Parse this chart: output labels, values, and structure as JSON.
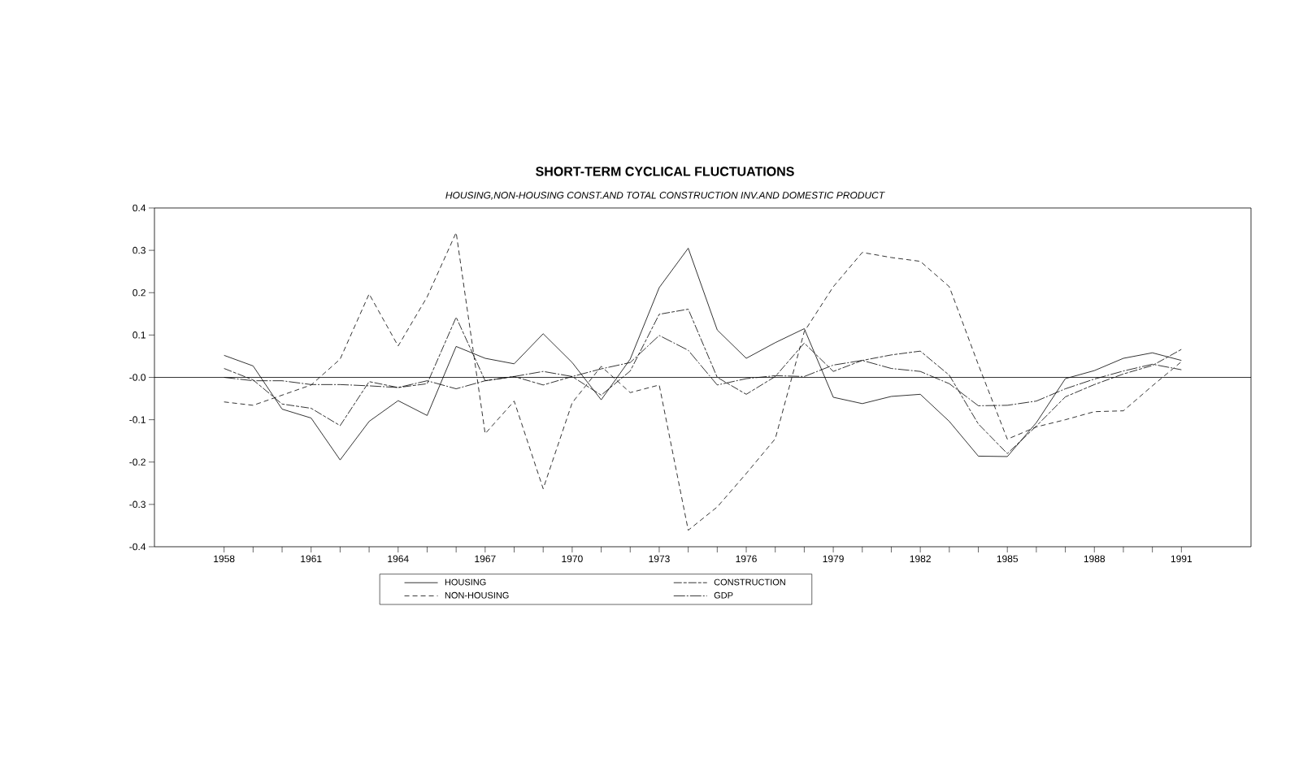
{
  "chart_data": {
    "type": "line",
    "title": "SHORT-TERM CYCLICAL FLUCTUATIONS",
    "subtitle": "HOUSING,NON-HOUSING CONST.AND TOTAL CONSTRUCTION INV.AND DOMESTIC PRODUCT",
    "x": [
      1958,
      1959,
      1960,
      1961,
      1962,
      1963,
      1964,
      1965,
      1966,
      1967,
      1968,
      1969,
      1970,
      1971,
      1972,
      1973,
      1974,
      1975,
      1976,
      1977,
      1978,
      1979,
      1980,
      1981,
      1982,
      1983,
      1984,
      1985,
      1986,
      1987,
      1988,
      1989,
      1990,
      1991
    ],
    "series": [
      {
        "name": "HOUSING",
        "color": "#000000",
        "line_style": "solid",
        "values": [
          0.052,
          0.027,
          -0.075,
          -0.096,
          -0.195,
          -0.104,
          -0.055,
          -0.09,
          0.073,
          0.045,
          0.032,
          0.103,
          0.035,
          -0.053,
          0.043,
          0.212,
          0.305,
          0.112,
          0.045,
          0.082,
          0.115,
          -0.047,
          -0.062,
          -0.045,
          -0.04,
          -0.104,
          -0.186,
          -0.187,
          -0.107,
          -0.003,
          0.016,
          0.045,
          0.058,
          0.04
        ]
      },
      {
        "name": "NON-HOUSING",
        "color": "#000000",
        "line_style": "dashed",
        "values": [
          -0.058,
          -0.066,
          -0.042,
          -0.018,
          0.043,
          0.197,
          0.074,
          0.19,
          0.342,
          -0.133,
          -0.056,
          -0.263,
          -0.06,
          0.026,
          -0.036,
          -0.018,
          -0.361,
          -0.306,
          -0.227,
          -0.145,
          0.108,
          0.214,
          0.295,
          0.283,
          0.274,
          0.214,
          0.03,
          -0.146,
          -0.117,
          -0.1,
          -0.081,
          -0.079,
          -0.02,
          0.037
        ]
      },
      {
        "name": "CONSTRUCTION",
        "color": "#000000",
        "line_style": "dashed",
        "values": [
          0.021,
          -0.006,
          -0.063,
          -0.073,
          -0.114,
          -0.01,
          -0.024,
          -0.015,
          0.142,
          -0.008,
          0.002,
          -0.018,
          0.002,
          -0.042,
          0.015,
          0.149,
          0.161,
          0.0,
          -0.04,
          0.002,
          0.081,
          0.014,
          0.04,
          0.053,
          0.062,
          0.005,
          -0.11,
          -0.18,
          -0.115,
          -0.046,
          -0.017,
          0.008,
          0.028,
          0.066
        ]
      },
      {
        "name": "GDP",
        "color": "#000000",
        "line_style": "dashed",
        "values": [
          0.0,
          -0.008,
          -0.008,
          -0.017,
          -0.017,
          -0.02,
          -0.024,
          -0.008,
          -0.027,
          -0.008,
          0.002,
          0.014,
          0.002,
          0.02,
          0.035,
          0.099,
          0.064,
          -0.018,
          -0.003,
          0.004,
          0.002,
          0.029,
          0.04,
          0.021,
          0.014,
          -0.015,
          -0.067,
          -0.066,
          -0.056,
          -0.027,
          -0.004,
          0.015,
          0.031,
          0.018
        ]
      }
    ],
    "xlim": [
      1955.6,
      1993.4
    ],
    "xticks": [
      1958,
      {
        "value": 1959,
        "label": null
      },
      {
        "value": 1960,
        "label": null
      },
      1961,
      {
        "value": 1962,
        "label": null
      },
      {
        "value": 1963,
        "label": null
      },
      1964,
      {
        "value": 1965,
        "label": null
      },
      {
        "value": 1966,
        "label": null
      },
      1967,
      {
        "value": 1968,
        "label": null
      },
      {
        "value": 1969,
        "label": null
      },
      1970,
      {
        "value": 1971,
        "label": null
      },
      {
        "value": 1972,
        "label": null
      },
      1973,
      {
        "value": 1974,
        "label": null
      },
      {
        "value": 1975,
        "label": null
      },
      1976,
      {
        "value": 1977,
        "label": null
      },
      {
        "value": 1978,
        "label": null
      },
      1979,
      {
        "value": 1980,
        "label": null
      },
      {
        "value": 1981,
        "label": null
      },
      1982,
      {
        "value": 1983,
        "label": null
      },
      {
        "value": 1984,
        "label": null
      },
      1985,
      {
        "value": 1986,
        "label": null
      },
      {
        "value": 1987,
        "label": null
      },
      1988,
      {
        "value": 1989,
        "label": null
      },
      {
        "value": 1990,
        "label": null
      },
      1991
    ],
    "ylim": [
      -0.4,
      0.4
    ],
    "yticks": [
      -0.4,
      -0.3,
      -0.2,
      -0.1,
      {
        "value": 0,
        "label": "-0.0"
      },
      0.1,
      0.2,
      0.3,
      0.4
    ],
    "ref_lines": [
      {
        "axis": "y",
        "value": 0,
        "color": "#000000"
      }
    ],
    "grid": false,
    "legend": "bottom",
    "marker": "none"
  }
}
